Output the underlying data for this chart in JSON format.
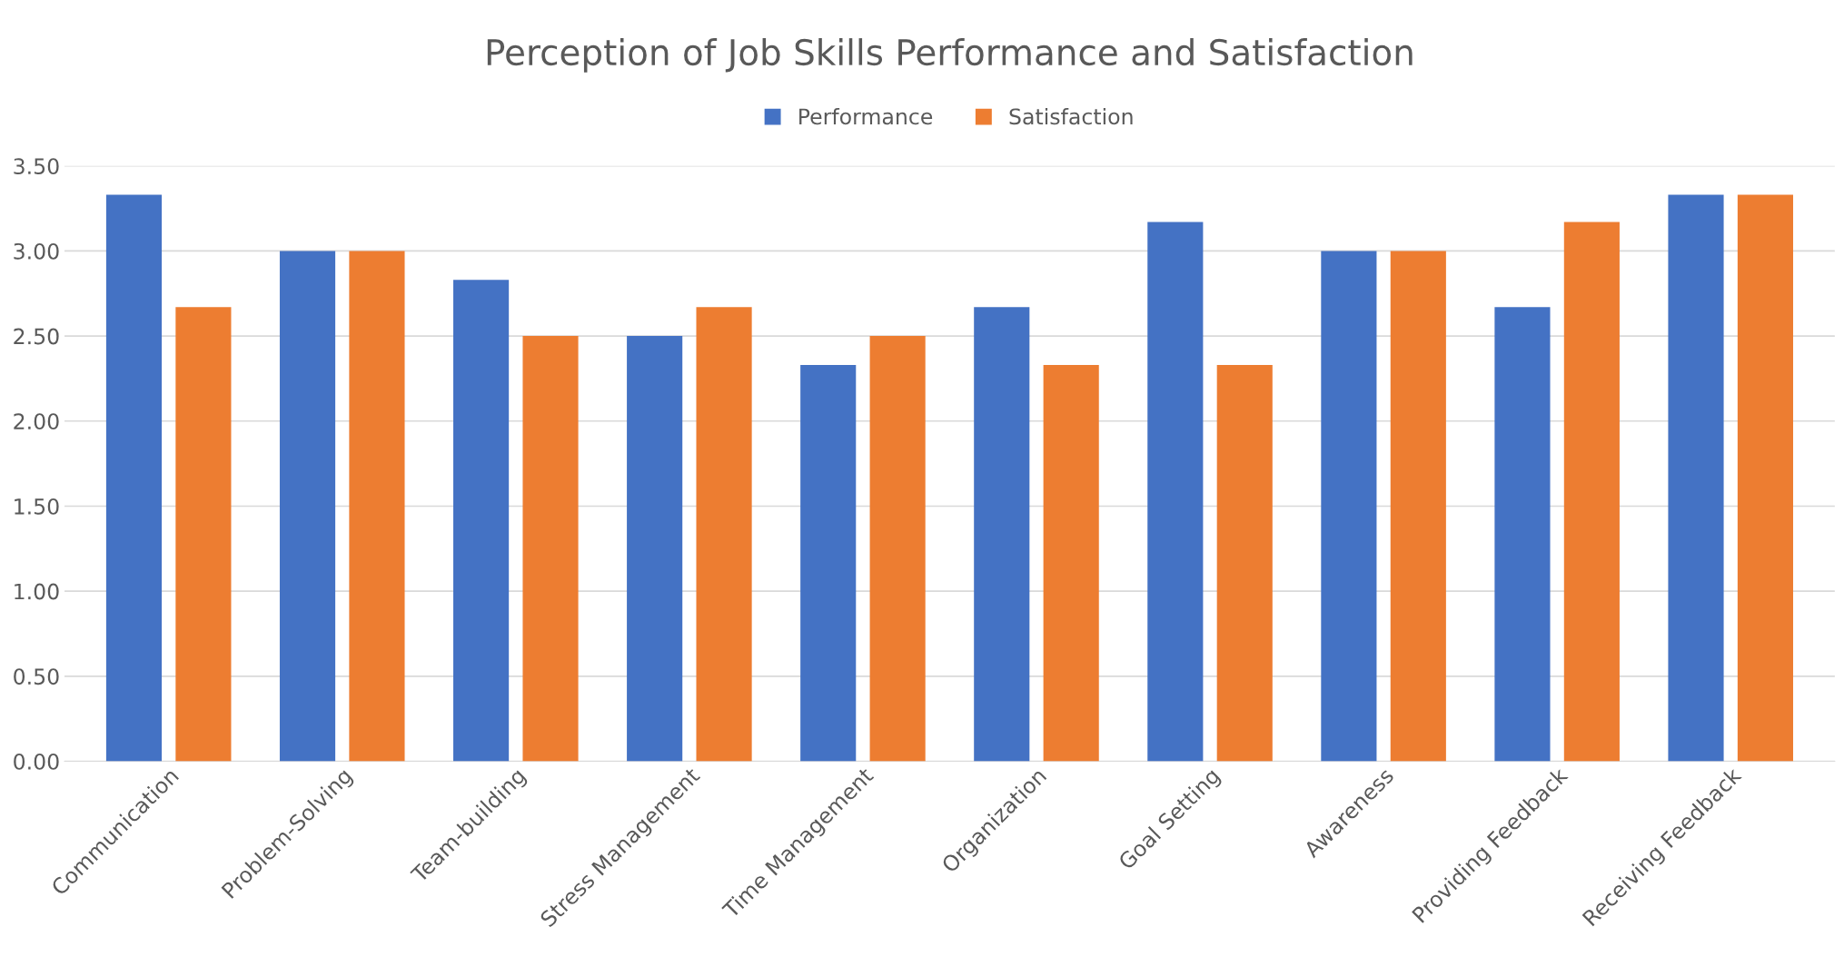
{
  "chart_data": {
    "type": "bar",
    "title": "Perception of Job Skills Performance and Satisfaction",
    "categories": [
      "Communication",
      "Problem-Solving",
      "Team-building",
      "Stress Management",
      "Time Management",
      "Organization",
      "Goal Setting",
      "Awareness",
      "Providing Feedback",
      "Receiving Feedback"
    ],
    "series": [
      {
        "name": "Performance",
        "color": "#4472c4",
        "values": [
          3.33,
          3.0,
          2.83,
          2.5,
          2.33,
          2.67,
          3.17,
          3.0,
          2.67,
          3.33
        ]
      },
      {
        "name": "Satisfaction",
        "color": "#ed7d31",
        "values": [
          2.67,
          3.0,
          2.5,
          2.67,
          2.5,
          2.33,
          2.33,
          3.0,
          3.17,
          3.33
        ]
      }
    ],
    "ylim": [
      0,
      3.5
    ],
    "yticks": [
      {
        "value": 0,
        "label": "0.00"
      },
      {
        "value": 0.5,
        "label": "0.50"
      },
      {
        "value": 1.0,
        "label": "1.00"
      },
      {
        "value": 1.5,
        "label": "1.50"
      },
      {
        "value": 2.0,
        "label": "2.00"
      },
      {
        "value": 2.5,
        "label": "2.50"
      },
      {
        "value": 3.0,
        "label": "3.00"
      },
      {
        "value": 3.5,
        "label": "3.50"
      }
    ],
    "grid": "y",
    "legend": "top"
  }
}
